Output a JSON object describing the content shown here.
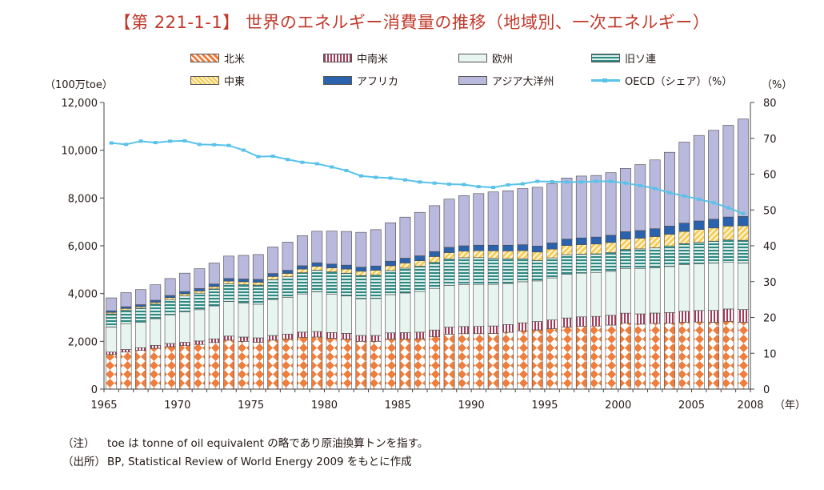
{
  "header": {
    "title": "【第 221-1-1】 世界のエネルギー消費量の推移（地域別、一次エネルギー）"
  },
  "colors": {
    "north_america": "#ef7d3c",
    "latin_america": "#a33a57",
    "europe": "#e7f4ef",
    "former_soviet": "#2d8a83",
    "middle_east": "#f6c94c",
    "africa": "#2b62ad",
    "asia_pacific": "#b9b8dd",
    "oecd_line": "#59c2e9",
    "axis": "#444444"
  },
  "legend": [
    {
      "key": "north_america",
      "label": "北米",
      "icon": "diamond-pattern-swatch"
    },
    {
      "key": "latin_america",
      "label": "中南米",
      "icon": "vertical-stripe-swatch"
    },
    {
      "key": "europe",
      "label": "欧州",
      "icon": "plain-swatch"
    },
    {
      "key": "former_soviet",
      "label": "旧ソ連",
      "icon": "horizontal-stripe-swatch"
    },
    {
      "key": "middle_east",
      "label": "中東",
      "icon": "diagonal-stripe-swatch"
    },
    {
      "key": "africa",
      "label": "アフリカ",
      "icon": "solid-swatch"
    },
    {
      "key": "asia_pacific",
      "label": "アジア大洋州",
      "icon": "plain-swatch"
    },
    {
      "key": "oecd_line",
      "label": "OECD（シェア）（%）",
      "icon": "line-marker-swatch"
    }
  ],
  "chart_data": {
    "type": "bar",
    "stacked": true,
    "title": "【第 221-1-1】 世界のエネルギー消費量の推移（地域別、一次エネルギー）",
    "ylabel": "（100万toe）",
    "y2label": "（%）",
    "xunit": "（年）",
    "ylim": [
      0,
      12000
    ],
    "yticks": [
      0,
      2000,
      4000,
      6000,
      8000,
      10000,
      12000
    ],
    "ytick_labels": [
      "0",
      "2,000",
      "4,000",
      "6,000",
      "8,000",
      "10,000",
      "12,000"
    ],
    "y2lim": [
      0,
      80
    ],
    "y2ticks": [
      0,
      10,
      20,
      30,
      40,
      50,
      60,
      70,
      80
    ],
    "xtick_labels": [
      "1965",
      "1970",
      "1975",
      "1980",
      "1985",
      "1990",
      "1995",
      "2000",
      "2005",
      "2008"
    ],
    "x": [
      1965,
      1966,
      1967,
      1968,
      1969,
      1970,
      1971,
      1972,
      1973,
      1974,
      1975,
      1976,
      1977,
      1978,
      1979,
      1980,
      1981,
      1982,
      1983,
      1984,
      1985,
      1986,
      1987,
      1988,
      1989,
      1990,
      1991,
      1992,
      1993,
      1994,
      1995,
      1996,
      1997,
      1998,
      1999,
      2000,
      2001,
      2002,
      2003,
      2004,
      2005,
      2006,
      2007,
      2008
    ],
    "series": [
      {
        "name": "北米",
        "key": "north_america",
        "values": [
          1450,
          1550,
          1620,
          1710,
          1780,
          1820,
          1870,
          1950,
          2050,
          2000,
          1960,
          2050,
          2100,
          2170,
          2180,
          2130,
          2090,
          2000,
          2000,
          2100,
          2100,
          2110,
          2190,
          2300,
          2320,
          2320,
          2330,
          2380,
          2440,
          2480,
          2530,
          2600,
          2630,
          2640,
          2680,
          2760,
          2720,
          2750,
          2760,
          2800,
          2810,
          2800,
          2840,
          2800
        ]
      },
      {
        "name": "中南米",
        "key": "latin_america",
        "values": [
          100,
          110,
          115,
          120,
          130,
          140,
          145,
          155,
          170,
          180,
          185,
          195,
          205,
          215,
          230,
          240,
          245,
          245,
          245,
          255,
          265,
          275,
          285,
          295,
          300,
          305,
          315,
          325,
          335,
          350,
          365,
          380,
          395,
          405,
          410,
          420,
          430,
          435,
          445,
          460,
          480,
          495,
          515,
          530
        ]
      },
      {
        "name": "欧州",
        "key": "europe",
        "values": [
          1050,
          1080,
          1060,
          1120,
          1200,
          1280,
          1310,
          1380,
          1450,
          1430,
          1410,
          1510,
          1540,
          1600,
          1660,
          1610,
          1570,
          1540,
          1550,
          1600,
          1660,
          1700,
          1740,
          1750,
          1760,
          1760,
          1740,
          1720,
          1720,
          1700,
          1760,
          1830,
          1830,
          1840,
          1840,
          1860,
          1890,
          1890,
          1930,
          1950,
          1960,
          1980,
          1950,
          1950
        ]
      },
      {
        "name": "旧ソ連",
        "key": "former_soviet",
        "values": [
          550,
          570,
          590,
          610,
          640,
          660,
          690,
          710,
          740,
          770,
          800,
          830,
          860,
          890,
          910,
          930,
          950,
          970,
          990,
          1010,
          1040,
          1060,
          1090,
          1110,
          1120,
          1120,
          1100,
          1040,
          970,
          860,
          840,
          820,
          800,
          780,
          790,
          810,
          830,
          840,
          860,
          880,
          900,
          920,
          940,
          950
        ]
      },
      {
        "name": "中東",
        "key": "middle_east",
        "values": [
          60,
          65,
          70,
          75,
          80,
          90,
          95,
          100,
          110,
          115,
          120,
          130,
          140,
          150,
          160,
          165,
          170,
          180,
          190,
          200,
          215,
          230,
          245,
          260,
          275,
          290,
          305,
          320,
          335,
          350,
          365,
          380,
          395,
          410,
          420,
          430,
          450,
          470,
          490,
          510,
          530,
          550,
          580,
          610
        ]
      },
      {
        "name": "アフリカ",
        "key": "africa",
        "values": [
          70,
          75,
          80,
          85,
          90,
          95,
          100,
          105,
          110,
          115,
          120,
          125,
          130,
          140,
          150,
          160,
          165,
          170,
          180,
          190,
          200,
          205,
          210,
          220,
          225,
          230,
          235,
          240,
          245,
          250,
          260,
          270,
          280,
          290,
          300,
          310,
          320,
          330,
          340,
          350,
          360,
          370,
          380,
          390
        ]
      },
      {
        "name": "アジア大洋州",
        "key": "asia_pacific",
        "values": [
          540,
          590,
          630,
          650,
          710,
          770,
          830,
          880,
          940,
          990,
          1040,
          1110,
          1180,
          1260,
          1320,
          1380,
          1410,
          1460,
          1520,
          1610,
          1720,
          1820,
          1920,
          2020,
          2100,
          2160,
          2230,
          2280,
          2350,
          2460,
          2490,
          2560,
          2590,
          2580,
          2620,
          2650,
          2760,
          2880,
          3090,
          3390,
          3580,
          3720,
          3840,
          4080
        ]
      },
      {
        "name": "OECD（シェア）（%）",
        "key": "oecd_line",
        "axis": "right",
        "values": [
          68.7,
          68.3,
          69.2,
          68.8,
          69.2,
          69.3,
          68.3,
          68.2,
          68.0,
          66.7,
          64.9,
          65.0,
          64.1,
          63.3,
          62.9,
          62.0,
          61.0,
          59.5,
          59.1,
          58.9,
          58.4,
          57.8,
          57.5,
          57.2,
          57.1,
          56.5,
          56.3,
          57.0,
          57.3,
          58.0,
          57.9,
          57.8,
          57.8,
          58.0,
          58.0,
          57.5,
          56.8,
          56.0,
          54.8,
          53.9,
          53.0,
          52.0,
          50.6,
          49.0
        ]
      }
    ]
  },
  "footnotes": [
    {
      "label": "（注）",
      "text": "toe は tonne of oil equivalent の略であり原油換算トンを指す。"
    },
    {
      "label": "（出所）",
      "text": "BP, Statistical Review of World Energy 2009 をもとに作成"
    }
  ]
}
